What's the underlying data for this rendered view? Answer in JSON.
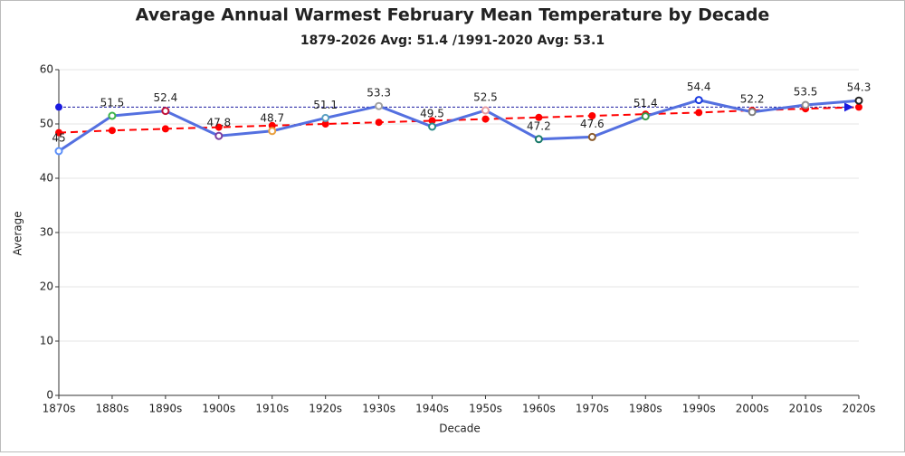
{
  "chart_data": {
    "type": "line",
    "title": "Average Annual Warmest February Mean Temperature by Decade",
    "subtitle": "1879-2026 Avg: 51.4 /1991-2020 Avg: 53.1",
    "x_label": "Decade",
    "y_label": "Average",
    "categories": [
      "1870s",
      "1880s",
      "1890s",
      "1900s",
      "1910s",
      "1920s",
      "1930s",
      "1940s",
      "1950s",
      "1960s",
      "1970s",
      "1980s",
      "1990s",
      "2000s",
      "2010s",
      "2020s"
    ],
    "series": [
      {
        "color": "#5470e0",
        "values": [
          45,
          51.5,
          52.4,
          47.8,
          48.7,
          51.1,
          53.3,
          49.5,
          52.5,
          47.2,
          47.6,
          51.4,
          54.4,
          52.2,
          53.5,
          54.3
        ],
        "marker_colors": [
          "#5b8ff9",
          "#3cb44b",
          "#c0143c",
          "#7b3fa0",
          "#e8a040",
          "#5aa0c0",
          "#a0a0a0",
          "#2a8a8a",
          "#e89aa0",
          "#1a7a6a",
          "#8a5a2a",
          "#3a9a4a",
          "#1a3ae0",
          "#808080",
          "#909090",
          "#222222"
        ],
        "labels": true
      },
      {
        "color": "#ff0000",
        "dashed": true,
        "values": [
          48.4,
          48.8,
          49.1,
          49.4,
          49.7,
          50.0,
          50.3,
          50.6,
          50.9,
          51.2,
          51.5,
          51.8,
          52.1,
          52.5,
          52.8,
          53.1
        ]
      }
    ],
    "reference_line": {
      "value": 53.1,
      "color": "#1a1aa0"
    },
    "ylim": [
      0,
      60
    ],
    "yticks": [
      0,
      10,
      20,
      30,
      40,
      50,
      60
    ],
    "grid": true
  }
}
